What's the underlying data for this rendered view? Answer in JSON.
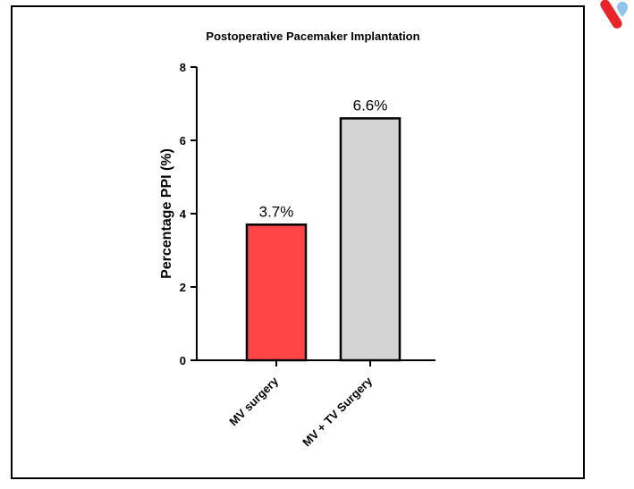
{
  "chart_data": {
    "type": "bar",
    "title": "Postoperative Pacemaker Implantation",
    "xlabel": "",
    "ylabel": "Percentage PPI (%)",
    "categories": [
      "MV surgery",
      "MV + TV Surgery"
    ],
    "values": [
      3.7,
      6.6
    ],
    "value_labels": [
      "3.7%",
      "6.6%"
    ],
    "ylim": [
      0,
      8
    ],
    "yticks": [
      0,
      2,
      4,
      6,
      8
    ],
    "grid": false,
    "legend": "none",
    "colors": [
      "#ff4545",
      "#d4d4d4"
    ]
  },
  "logo": {
    "colors": [
      "#e8252b",
      "#8ec5e8"
    ]
  }
}
